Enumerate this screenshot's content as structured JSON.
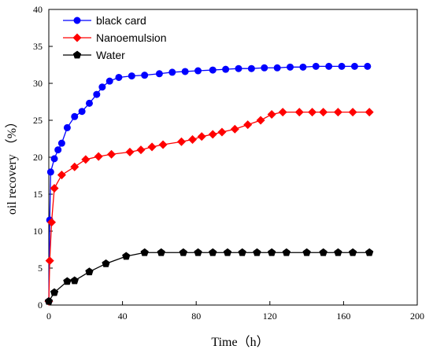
{
  "chart_data": {
    "type": "line",
    "xlabel": "Time（h）",
    "ylabel": "oil recovery （%）",
    "xlim": [
      0,
      200
    ],
    "ylim": [
      0,
      40
    ],
    "xticks": [
      0,
      40,
      80,
      120,
      160,
      200
    ],
    "yticks": [
      0,
      5,
      10,
      15,
      20,
      25,
      30,
      35,
      40
    ],
    "grid": false,
    "legend_position": "top-left",
    "series": [
      {
        "name": "black card",
        "color": "#0000ff",
        "marker": "circle",
        "x": [
          0,
          0.5,
          1,
          3,
          5,
          7,
          10,
          14,
          18,
          22,
          26,
          29,
          33,
          38,
          45,
          52,
          60,
          67,
          74,
          81,
          89,
          96,
          103,
          110,
          117,
          124,
          131,
          138,
          145,
          152,
          159,
          166,
          173
        ],
        "y": [
          0.5,
          11.5,
          18,
          19.8,
          21,
          21.9,
          24,
          25.5,
          26.2,
          27.3,
          28.5,
          29.5,
          30.3,
          30.8,
          31,
          31.1,
          31.3,
          31.5,
          31.6,
          31.7,
          31.8,
          31.9,
          32,
          32,
          32.1,
          32.1,
          32.2,
          32.2,
          32.3,
          32.3,
          32.3,
          32.3,
          32.3
        ]
      },
      {
        "name": "Nanoemulsion",
        "color": "#ff0000",
        "marker": "diamond",
        "x": [
          0,
          0.5,
          1.5,
          3,
          7,
          14,
          20,
          27,
          34,
          44,
          50,
          56,
          62,
          72,
          78,
          83,
          89,
          94,
          101,
          108,
          115,
          121,
          127,
          136,
          143,
          149,
          157,
          165,
          174
        ],
        "y": [
          0.5,
          6,
          11.2,
          15.8,
          17.6,
          18.7,
          19.7,
          20.1,
          20.4,
          20.7,
          21,
          21.4,
          21.7,
          22.1,
          22.4,
          22.8,
          23.1,
          23.4,
          23.8,
          24.4,
          25,
          25.8,
          26.1,
          26.1,
          26.1,
          26.1,
          26.1,
          26.1,
          26.1
        ]
      },
      {
        "name": "Water",
        "color": "#000000",
        "marker": "pentagon",
        "x": [
          0,
          3,
          10,
          14,
          22,
          31,
          42,
          52,
          61,
          73,
          81,
          89,
          97,
          105,
          113,
          121,
          129,
          140,
          149,
          157,
          165,
          174
        ],
        "y": [
          0.5,
          1.7,
          3.2,
          3.3,
          4.5,
          5.6,
          6.6,
          7.1,
          7.1,
          7.1,
          7.1,
          7.1,
          7.1,
          7.1,
          7.1,
          7.1,
          7.1,
          7.1,
          7.1,
          7.1,
          7.1,
          7.1
        ]
      }
    ]
  }
}
